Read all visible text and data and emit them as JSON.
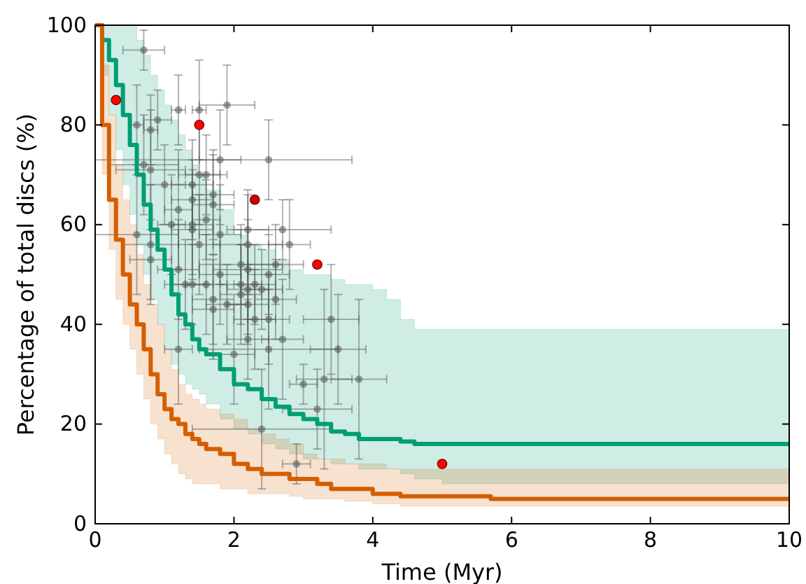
{
  "chart_data": {
    "type": "step",
    "xlabel": "Time (Myr)",
    "ylabel": "Percentage of total discs (%)",
    "xlim": [
      0,
      10
    ],
    "ylim": [
      0,
      100
    ],
    "xticks": [
      0,
      2,
      4,
      6,
      8,
      10
    ],
    "yticks": [
      0,
      20,
      40,
      60,
      80,
      100
    ],
    "grid": false,
    "line_style": "solid",
    "marker": "none",
    "series": [
      {
        "type": "scatter",
        "marker": "circle",
        "color": "#555555",
        "x": [
          0.7,
          0.6,
          0.8,
          0.9,
          0.7,
          0.8,
          1.0,
          1.2,
          1.5,
          1.9,
          1.8,
          2.5,
          1.4,
          1.5,
          1.6,
          1.7,
          1.4,
          1.7,
          1.2,
          1.1,
          1.4,
          1.4,
          1.6,
          0.6,
          1.8,
          0.8,
          1.5,
          0.8,
          2.2,
          2.7,
          2.2,
          2.8,
          2.1,
          2.2,
          2.6,
          1.2,
          1.8,
          1.3,
          1.4,
          1.6,
          2.1,
          2.3,
          2.5,
          2.1,
          2.2,
          2.4,
          1.7,
          1.9,
          2.2,
          1.7,
          2.6,
          2.3,
          2.5,
          3.4,
          2.2,
          2.7,
          2.0,
          1.2,
          2.5,
          3.5,
          3.0,
          3.3,
          3.8,
          3.2,
          2.4,
          2.9
        ],
        "values": [
          95,
          80,
          79,
          81,
          72,
          71,
          68,
          83,
          83,
          84,
          73,
          73,
          68,
          70,
          70,
          66,
          65,
          64,
          63,
          60,
          60,
          59,
          61,
          58,
          58,
          56,
          56,
          53,
          59,
          59,
          56,
          56,
          52,
          51,
          52,
          51,
          50,
          48,
          48,
          48,
          48,
          48,
          50,
          46,
          47,
          47,
          45,
          44,
          44,
          43,
          45,
          41,
          41,
          41,
          37,
          37,
          34,
          35,
          35,
          35,
          28,
          29,
          29,
          23,
          19,
          12
        ],
        "errors": [
          4,
          8,
          7,
          6,
          10,
          12,
          8,
          7,
          10,
          8,
          10,
          8,
          9,
          10,
          8,
          9,
          8,
          10,
          12,
          10,
          11,
          9,
          8,
          12,
          10,
          12,
          10,
          8,
          8,
          6,
          10,
          9,
          8,
          10,
          8,
          10,
          10,
          9,
          8,
          10,
          8,
          8,
          8,
          10,
          9,
          8,
          9,
          8,
          8,
          10,
          8,
          10,
          9,
          11,
          8,
          12,
          10,
          11,
          12,
          11,
          4,
          18,
          16,
          8,
          12,
          4
        ],
        "xerrors": [
          0.3,
          0.1,
          0.1,
          0.2,
          0.5,
          0.5,
          0.3,
          0.1,
          0.1,
          0.4,
          0.3,
          [
            0,
            3.7
          ],
          0.3,
          0.3,
          0.3,
          0.3,
          0.3,
          0.3,
          0.2,
          0.2,
          0.3,
          0.3,
          0.2,
          0.6,
          0.3,
          0.4,
          0.3,
          0.3,
          0.3,
          0.7,
          0.5,
          0.3,
          0.6,
          0.5,
          0.4,
          0.3,
          0.3,
          0.3,
          0.3,
          0.3,
          0.3,
          0.3,
          0.3,
          0.3,
          0.3,
          0.3,
          0.3,
          0.3,
          0.3,
          0.3,
          0.3,
          0.3,
          0.3,
          0.4,
          0.3,
          0.3,
          0.3,
          0.2,
          1.0,
          0.4,
          0.2,
          0.4,
          0.4,
          0.5,
          1.0,
          0.2
        ]
      },
      {
        "color": "#009e73",
        "x": [
          0,
          0.1,
          0.2,
          0.3,
          0.4,
          0.5,
          0.6,
          0.7,
          0.8,
          0.9,
          1.0,
          1.1,
          1.2,
          1.3,
          1.4,
          1.5,
          1.6,
          1.8,
          2.0,
          2.2,
          2.4,
          2.6,
          2.8,
          3.0,
          3.2,
          3.4,
          3.6,
          3.8,
          4.0,
          4.2,
          4.4,
          4.6,
          5.0,
          5.7,
          10
        ],
        "values": [
          100,
          97,
          93,
          88,
          82,
          76,
          70,
          64,
          59,
          55,
          51,
          46,
          42,
          40,
          37,
          35,
          34,
          31,
          28,
          27,
          25,
          23.5,
          22,
          21,
          20,
          18.5,
          18,
          17,
          17,
          17,
          16.5,
          16,
          16,
          16,
          16
        ],
        "lower": [
          100,
          90,
          82,
          75,
          68,
          62,
          56,
          50,
          45,
          40,
          35,
          32,
          30,
          28,
          27,
          26,
          24,
          21,
          19,
          18,
          16,
          15,
          14,
          13,
          13,
          12,
          12,
          11,
          11,
          11,
          10,
          9,
          8,
          8,
          8
        ],
        "upper": [
          100,
          100,
          100,
          100,
          100,
          100,
          97,
          94,
          90,
          87,
          84,
          81,
          78,
          75,
          72,
          70,
          67,
          63,
          58,
          56,
          55,
          53,
          51,
          50,
          50,
          49,
          48,
          48,
          47,
          45,
          41,
          39,
          39,
          39,
          39
        ]
      },
      {
        "color": "#d55e00",
        "x": [
          0,
          0.1,
          0.2,
          0.3,
          0.4,
          0.5,
          0.6,
          0.7,
          0.8,
          0.9,
          1.0,
          1.1,
          1.2,
          1.3,
          1.4,
          1.5,
          1.6,
          1.8,
          2.0,
          2.2,
          2.4,
          2.6,
          2.8,
          3.0,
          3.2,
          3.4,
          3.6,
          3.8,
          4.0,
          4.2,
          4.4,
          4.6,
          5.0,
          5.7,
          10
        ],
        "values": [
          100,
          80,
          65,
          57,
          50,
          44,
          40,
          35,
          30,
          26,
          23,
          21,
          20,
          18,
          17,
          16,
          15,
          14,
          12,
          11,
          10,
          10,
          9,
          9,
          8,
          7,
          7,
          7,
          6,
          6,
          5.5,
          5.5,
          5.5,
          5,
          5
        ],
        "lower": [
          100,
          70,
          55,
          45,
          40,
          35,
          30,
          25,
          20,
          17,
          14,
          12,
          10,
          9,
          8,
          8,
          8,
          7,
          7,
          6,
          6,
          6,
          5.5,
          5,
          5,
          5,
          4.5,
          4.5,
          4,
          4,
          3.5,
          3.5,
          3.5,
          3.5,
          3.5
        ],
        "upper": [
          100,
          92,
          82,
          72,
          65,
          60,
          54,
          48,
          44,
          40,
          35,
          31,
          28,
          26,
          25,
          24,
          23,
          22,
          21,
          19,
          18,
          17,
          16,
          14,
          13,
          13,
          12,
          12,
          12,
          11,
          11,
          11,
          11,
          11,
          11
        ]
      },
      {
        "type": "scatter",
        "marker": "circle",
        "colors": [
          "#ff0000",
          "#ff0000",
          "#cc0000",
          "#ff0000",
          "#ff0000"
        ],
        "x": [
          0.3,
          1.5,
          2.3,
          3.2,
          5.0
        ],
        "values": [
          85,
          80,
          65,
          52,
          12
        ]
      }
    ]
  }
}
